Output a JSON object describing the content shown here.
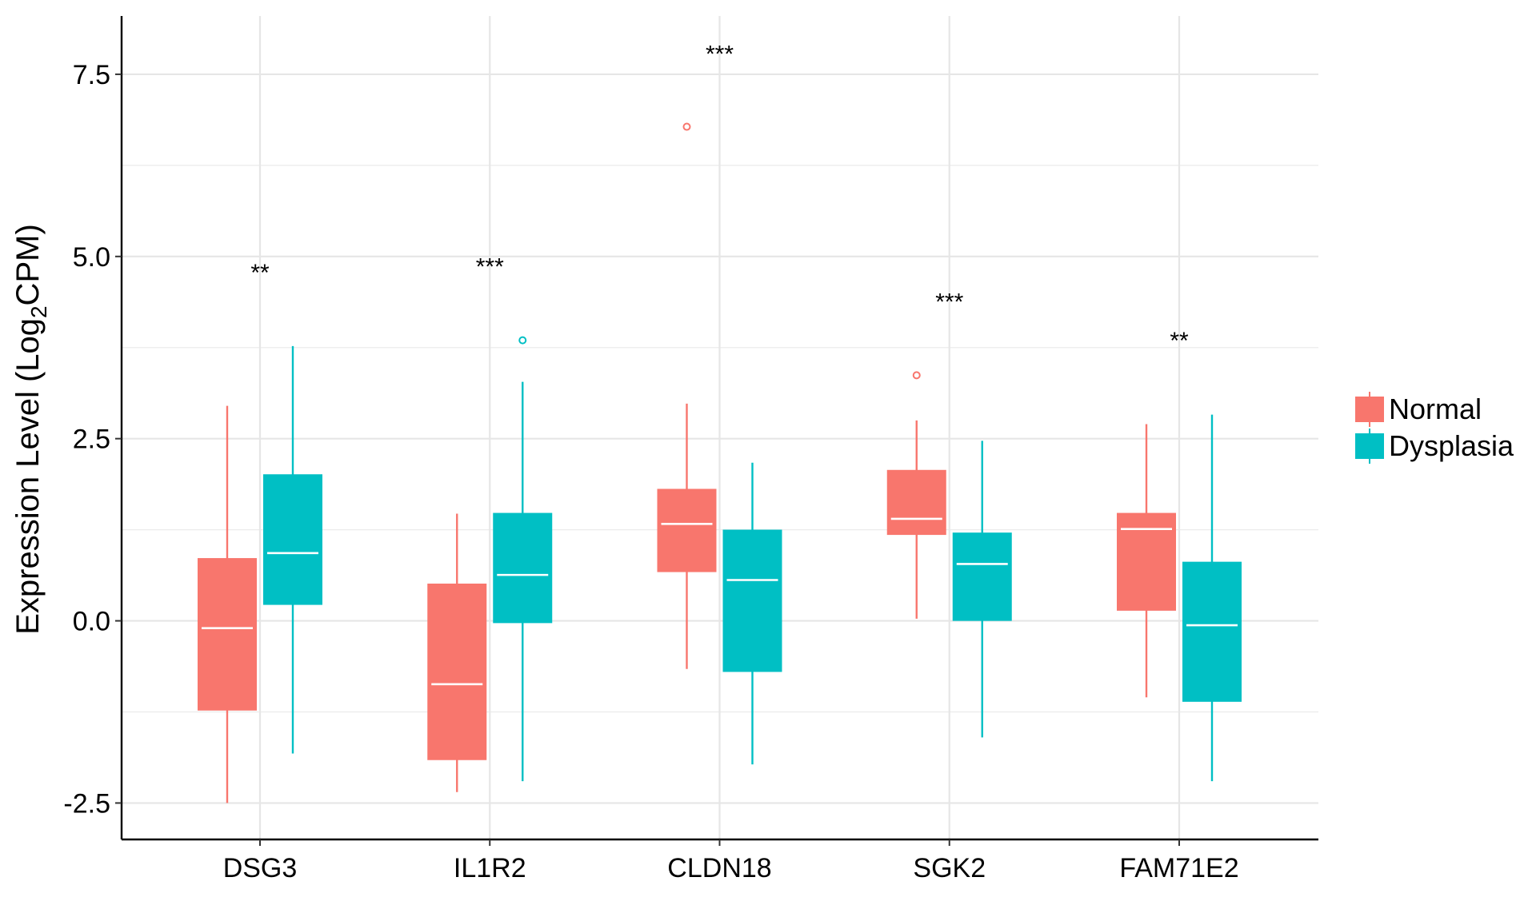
{
  "chart_data": {
    "type": "boxplot",
    "ylabel_main": "Expression Level (Log",
    "ylabel_sub": "2",
    "ylabel_tail": "CPM)",
    "xlabel": "",
    "ylim": [
      -3.0,
      8.3
    ],
    "yticks": [
      -2.5,
      0.0,
      2.5,
      5.0,
      7.5
    ],
    "ytick_labels": [
      "-2.5",
      "0.0",
      "2.5",
      "5.0",
      "7.5"
    ],
    "grid": true,
    "legend_position": "right",
    "categories": [
      "DSG3",
      "IL1R2",
      "CLDN18",
      "SGK2",
      "FAM71E2"
    ],
    "significance": [
      "**",
      "***",
      "***",
      "***",
      "**"
    ],
    "significance_y": [
      4.8,
      4.88,
      7.8,
      4.4,
      3.87
    ],
    "series": [
      {
        "name": "Normal",
        "color": "#F8766D",
        "boxes": [
          {
            "whisker_low": -2.5,
            "q1": -1.22,
            "median": -0.1,
            "q3": 0.85,
            "whisker_high": 2.95,
            "outliers": []
          },
          {
            "whisker_low": -2.35,
            "q1": -1.9,
            "median": -0.87,
            "q3": 0.5,
            "whisker_high": 1.47,
            "outliers": []
          },
          {
            "whisker_low": -0.66,
            "q1": 0.68,
            "median": 1.33,
            "q3": 1.8,
            "whisker_high": 2.98,
            "outliers": [
              6.78
            ]
          },
          {
            "whisker_low": 0.03,
            "q1": 1.19,
            "median": 1.4,
            "q3": 2.06,
            "whisker_high": 2.75,
            "outliers": [
              3.37
            ]
          },
          {
            "whisker_low": -1.05,
            "q1": 0.15,
            "median": 1.26,
            "q3": 1.47,
            "whisker_high": 2.7,
            "outliers": []
          }
        ]
      },
      {
        "name": "Dysplasia",
        "color": "#00BFC4",
        "boxes": [
          {
            "whisker_low": -1.82,
            "q1": 0.23,
            "median": 0.93,
            "q3": 2.0,
            "whisker_high": 3.77,
            "outliers": []
          },
          {
            "whisker_low": -2.2,
            "q1": -0.02,
            "median": 0.63,
            "q3": 1.47,
            "whisker_high": 3.28,
            "outliers": [
              3.85
            ]
          },
          {
            "whisker_low": -1.97,
            "q1": -0.69,
            "median": 0.56,
            "q3": 1.24,
            "whisker_high": 2.17,
            "outliers": []
          },
          {
            "whisker_low": -1.6,
            "q1": 0.01,
            "median": 0.78,
            "q3": 1.2,
            "whisker_high": 2.47,
            "outliers": []
          },
          {
            "whisker_low": -2.2,
            "q1": -1.1,
            "median": -0.06,
            "q3": 0.8,
            "whisker_high": 2.83,
            "outliers": []
          }
        ]
      }
    ]
  }
}
